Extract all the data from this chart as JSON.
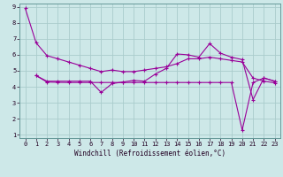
{
  "xlabel": "Windchill (Refroidissement éolien,°C)",
  "bg_color": "#cde8e8",
  "line_color": "#990099",
  "grid_color": "#aacccc",
  "xlim": [
    -0.5,
    23.5
  ],
  "ylim": [
    0.8,
    9.2
  ],
  "xticks": [
    0,
    1,
    2,
    3,
    4,
    5,
    6,
    7,
    8,
    9,
    10,
    11,
    12,
    13,
    14,
    15,
    16,
    17,
    18,
    19,
    20,
    21,
    22,
    23
  ],
  "yticks": [
    1,
    2,
    3,
    4,
    5,
    6,
    7,
    8,
    9
  ],
  "line1_x": [
    0,
    1,
    2,
    3,
    4,
    5,
    6,
    7,
    8,
    9,
    10,
    11,
    12,
    13,
    14,
    15,
    16,
    17,
    18,
    19,
    20,
    21,
    22,
    23
  ],
  "line1_y": [
    8.9,
    6.75,
    5.95,
    5.75,
    5.55,
    5.35,
    5.15,
    4.95,
    5.05,
    4.95,
    4.95,
    5.05,
    5.15,
    5.25,
    5.45,
    5.75,
    5.75,
    5.85,
    5.75,
    5.65,
    5.55,
    4.55,
    4.35,
    4.25
  ],
  "line2_x": [
    1,
    2,
    3,
    4,
    5,
    6,
    7,
    8,
    9,
    10,
    11,
    12,
    13,
    14,
    15,
    16,
    17,
    18,
    19,
    20,
    21,
    22,
    23
  ],
  "line2_y": [
    4.7,
    4.35,
    4.35,
    4.35,
    4.35,
    4.35,
    3.65,
    4.2,
    4.3,
    4.4,
    4.35,
    4.8,
    5.15,
    6.05,
    6.0,
    5.85,
    6.7,
    6.1,
    5.85,
    5.7,
    3.2,
    4.55,
    4.35
  ],
  "line3_x": [
    1,
    2,
    3,
    4,
    5,
    6,
    7,
    8,
    9,
    10,
    11,
    12,
    13,
    14,
    15,
    16,
    17,
    18,
    19,
    20,
    21,
    22,
    23
  ],
  "line3_y": [
    4.7,
    4.3,
    4.28,
    4.27,
    4.27,
    4.27,
    4.27,
    4.27,
    4.27,
    4.27,
    4.27,
    4.27,
    4.27,
    4.27,
    4.27,
    4.27,
    4.27,
    4.27,
    4.27,
    1.3,
    4.27,
    4.55,
    4.35
  ],
  "xlabel_fontsize": 5.5,
  "tick_fontsize": 5.0
}
